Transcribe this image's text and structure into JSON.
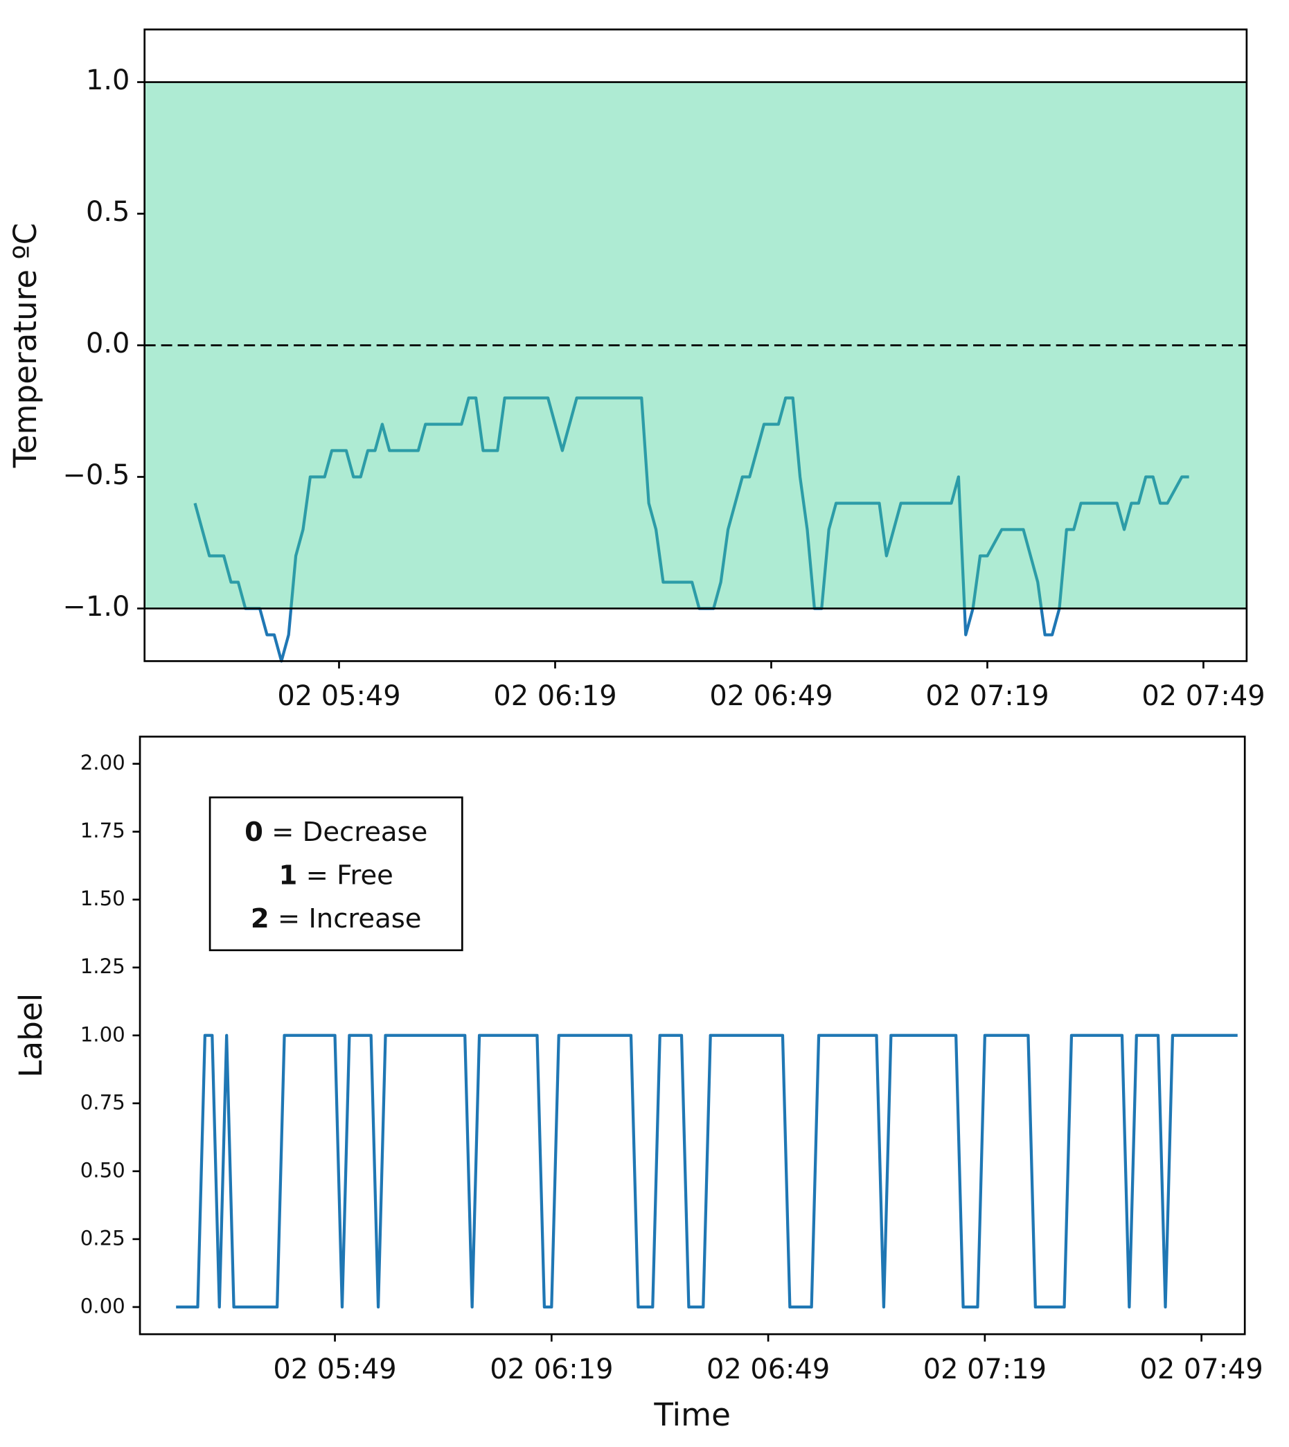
{
  "chart_data": [
    {
      "type": "line",
      "ylabel": "Temperature ºC",
      "x": [
        "02 05:29",
        "02 05:31",
        "02 05:33",
        "02 05:34",
        "02 05:35",
        "02 05:36",
        "02 05:38",
        "02 05:39",
        "02 05:40",
        "02 05:41",
        "02 05:42",
        "02 05:43",
        "02 05:44",
        "02 05:45",
        "02 05:47",
        "02 05:48",
        "02 05:50",
        "02 05:51",
        "02 05:52",
        "02 05:53",
        "02 05:54",
        "02 05:55",
        "02 05:56",
        "02 06:00",
        "02 06:01",
        "02 06:06",
        "02 06:07",
        "02 06:08",
        "02 06:09",
        "02 06:11",
        "02 06:12",
        "02 06:18",
        "02 06:20",
        "02 06:22",
        "02 06:31",
        "02 06:32",
        "02 06:33",
        "02 06:34",
        "02 06:38",
        "02 06:39",
        "02 06:41",
        "02 06:42",
        "02 06:43",
        "02 06:45",
        "02 06:46",
        "02 06:48",
        "02 06:50",
        "02 06:51",
        "02 06:52",
        "02 06:53",
        "02 06:54",
        "02 06:55",
        "02 06:56",
        "02 06:57",
        "02 06:58",
        "02 07:04",
        "02 07:05",
        "02 07:07",
        "02 07:14",
        "02 07:15",
        "02 07:16",
        "02 07:17",
        "02 07:18",
        "02 07:19",
        "02 07:21",
        "02 07:24",
        "02 07:26",
        "02 07:27",
        "02 07:28",
        "02 07:29",
        "02 07:30",
        "02 07:31",
        "02 07:32",
        "02 07:37",
        "02 07:38",
        "02 07:39",
        "02 07:40",
        "02 07:41",
        "02 07:42",
        "02 07:43",
        "02 07:44",
        "02 07:46",
        "02 07:47"
      ],
      "series": [
        {
          "color": "#1f77b4",
          "values": [
            -0.6,
            -0.8,
            -0.8,
            -0.9,
            -0.9,
            -1.0,
            -1.0,
            -1.1,
            -1.1,
            -1.2,
            -1.1,
            -0.8,
            -0.7,
            -0.5,
            -0.5,
            -0.4,
            -0.4,
            -0.5,
            -0.5,
            -0.4,
            -0.4,
            -0.3,
            -0.4,
            -0.4,
            -0.3,
            -0.3,
            -0.2,
            -0.2,
            -0.4,
            -0.4,
            -0.2,
            -0.2,
            -0.4,
            -0.2,
            -0.2,
            -0.6,
            -0.7,
            -0.9,
            -0.9,
            -1.0,
            -1.0,
            -0.9,
            -0.7,
            -0.5,
            -0.5,
            -0.3,
            -0.3,
            -0.2,
            -0.2,
            -0.5,
            -0.7,
            -1.0,
            -1.0,
            -0.7,
            -0.6,
            -0.6,
            -0.8,
            -0.6,
            -0.6,
            -0.5,
            -1.1,
            -1.0,
            -0.8,
            -0.8,
            -0.7,
            -0.7,
            -0.9,
            -1.1,
            -1.1,
            -1.0,
            -0.7,
            -0.7,
            -0.6,
            -0.6,
            -0.7,
            -0.6,
            -0.6,
            -0.5,
            -0.5,
            -0.6,
            -0.6,
            -0.5,
            -0.5
          ]
        }
      ],
      "band": [
        -1,
        1
      ],
      "band_color": "#3ecf96",
      "reference_line": 0,
      "xlim": [
        "02 05:22",
        "02 07:55"
      ],
      "xticks": [
        "02 05:49",
        "02 06:19",
        "02 06:49",
        "02 07:19",
        "02 07:49"
      ],
      "ylim": [
        -1.2,
        1.2
      ],
      "yticks": [
        {
          "value": -1,
          "label": "−1.0"
        },
        {
          "value": -0.5,
          "label": "−0.5"
        },
        {
          "value": 0,
          "label": "0.0"
        },
        {
          "value": 0.5,
          "label": "0.5"
        },
        {
          "value": 1,
          "label": "1.0"
        }
      ]
    },
    {
      "type": "line",
      "ylabel": "Label",
      "xlabel": "Time",
      "note": [
        {
          "key": "0",
          "text": "= Decrease"
        },
        {
          "key": "1",
          "text": "= Free"
        },
        {
          "key": "2",
          "text": "= Increase"
        }
      ],
      "x": [
        "02 05:27",
        "02 05:30",
        "02 05:31",
        "02 05:32",
        "02 05:33",
        "02 05:34",
        "02 05:35",
        "02 05:41",
        "02 05:42",
        "02 05:49",
        "02 05:50",
        "02 05:51",
        "02 05:54",
        "02 05:55",
        "02 05:56",
        "02 06:07",
        "02 06:08",
        "02 06:09",
        "02 06:17",
        "02 06:18",
        "02 06:19",
        "02 06:20",
        "02 06:30",
        "02 06:31",
        "02 06:33",
        "02 06:34",
        "02 06:37",
        "02 06:38",
        "02 06:40",
        "02 06:41",
        "02 06:51",
        "02 06:52",
        "02 06:55",
        "02 06:56",
        "02 07:04",
        "02 07:05",
        "02 07:06",
        "02 07:15",
        "02 07:16",
        "02 07:18",
        "02 07:19",
        "02 07:25",
        "02 07:26",
        "02 07:30",
        "02 07:31",
        "02 07:38",
        "02 07:39",
        "02 07:40",
        "02 07:43",
        "02 07:44",
        "02 07:45",
        "02 07:54"
      ],
      "series": [
        {
          "color": "#1f77b4",
          "values": [
            0,
            0,
            1,
            1,
            0,
            1,
            0,
            0,
            1,
            1,
            0,
            1,
            1,
            0,
            1,
            1,
            0,
            1,
            1,
            0,
            0,
            1,
            1,
            0,
            0,
            1,
            1,
            0,
            0,
            1,
            1,
            0,
            0,
            1,
            1,
            0,
            1,
            1,
            0,
            0,
            1,
            1,
            0,
            0,
            1,
            1,
            0,
            1,
            1,
            0,
            1,
            1
          ]
        }
      ],
      "xlim": [
        "02 05:22",
        "02 07:55"
      ],
      "xticks": [
        "02 05:49",
        "02 06:19",
        "02 06:49",
        "02 07:19",
        "02 07:49"
      ],
      "ylim": [
        -0.1,
        2.1
      ],
      "yticks": [
        {
          "value": 0,
          "label": "0.00"
        },
        {
          "value": 0.25,
          "label": "0.25"
        },
        {
          "value": 0.5,
          "label": "0.50"
        },
        {
          "value": 0.75,
          "label": "0.75"
        },
        {
          "value": 1,
          "label": "1.00"
        },
        {
          "value": 1.25,
          "label": "1.25"
        },
        {
          "value": 1.5,
          "label": "1.50"
        },
        {
          "value": 1.75,
          "label": "1.75"
        },
        {
          "value": 2,
          "label": "2.00"
        }
      ]
    }
  ]
}
